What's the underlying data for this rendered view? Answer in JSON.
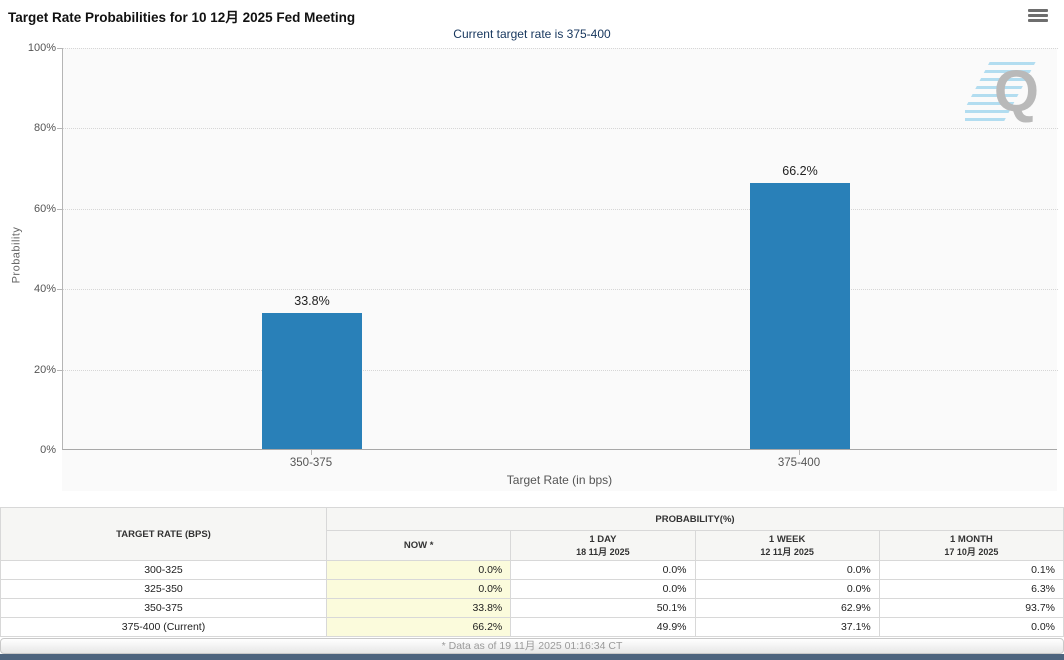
{
  "header": {
    "title": "Target Rate Probabilities for 10 12月 2025 Fed Meeting",
    "menu_icon": "hamburger-icon"
  },
  "chart": {
    "subtitle": "Current target rate is 375-400",
    "ylabel": "Probability",
    "xlabel": "Target Rate (in bps)",
    "y_ticks": {
      "t100": "100%",
      "t80": "80%",
      "t60": "60%",
      "t40": "40%",
      "t20": "20%",
      "t0": "0%"
    },
    "watermark_letter": "Q"
  },
  "chart_data": {
    "type": "bar",
    "categories": [
      "350-375",
      "375-400"
    ],
    "values": [
      33.8,
      66.2
    ],
    "value_labels": [
      "33.8%",
      "66.2%"
    ],
    "title": "Target Rate Probabilities for 10 12月 2025 Fed Meeting",
    "xlabel": "Target Rate (in bps)",
    "ylabel": "Probability",
    "ylim": [
      0,
      100
    ],
    "grid": "dotted horizontal at 20% intervals",
    "bar_color": "#2980b8"
  },
  "table": {
    "header_target_rate": "TARGET RATE (BPS)",
    "header_probability": "PROBABILITY(%)",
    "subheaders": {
      "now": "NOW *",
      "day_label": "1 DAY",
      "day_date": "18 11月 2025",
      "week_label": "1 WEEK",
      "week_date": "12 11月 2025",
      "month_label": "1 MONTH",
      "month_date": "17 10月 2025"
    },
    "rows": [
      {
        "rate": "300-325",
        "now": "0.0%",
        "day": "0.0%",
        "week": "0.0%",
        "month": "0.1%"
      },
      {
        "rate": "325-350",
        "now": "0.0%",
        "day": "0.0%",
        "week": "0.0%",
        "month": "6.3%"
      },
      {
        "rate": "350-375",
        "now": "33.8%",
        "day": "50.1%",
        "week": "62.9%",
        "month": "93.7%"
      },
      {
        "rate": "375-400 (Current)",
        "now": "66.2%",
        "day": "49.9%",
        "week": "37.1%",
        "month": "0.0%"
      }
    ]
  },
  "footer": {
    "note": "* Data as of 19 11月 2025 01:16:34 CT"
  },
  "colors": {
    "bar": "#2980b8",
    "subtitle": "#16365d",
    "now_column_bg": "#fbfbdc",
    "bottom_strip": "#4d647e"
  }
}
